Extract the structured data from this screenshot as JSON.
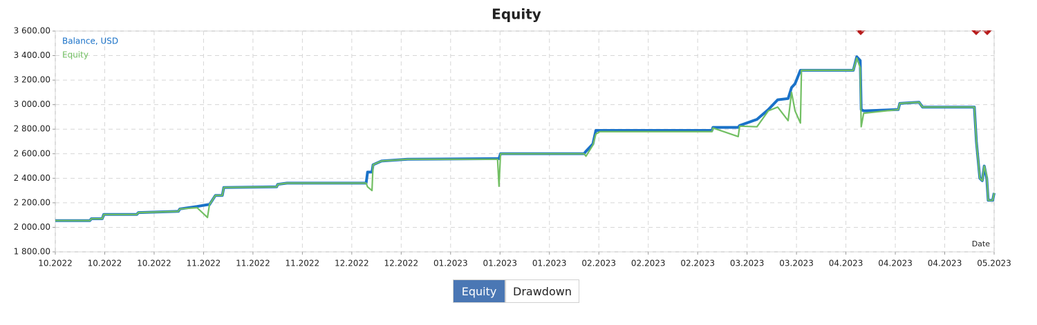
{
  "chart_data": {
    "type": "line",
    "title": "Equity",
    "x_label": "Date",
    "xlim": [
      0,
      19
    ],
    "xticks": [
      {
        "value": 0,
        "label": "10.2022"
      },
      {
        "value": 1,
        "label": "10.2022"
      },
      {
        "value": 2,
        "label": "10.2022"
      },
      {
        "value": 3,
        "label": "11.2022"
      },
      {
        "value": 4,
        "label": "11.2022"
      },
      {
        "value": 5,
        "label": "11.2022"
      },
      {
        "value": 6,
        "label": "12.2022"
      },
      {
        "value": 7,
        "label": "12.2022"
      },
      {
        "value": 8,
        "label": "01.2023"
      },
      {
        "value": 9,
        "label": "01.2023"
      },
      {
        "value": 10,
        "label": "01.2023"
      },
      {
        "value": 11,
        "label": "02.2023"
      },
      {
        "value": 12,
        "label": "02.2023"
      },
      {
        "value": 13,
        "label": "02.2023"
      },
      {
        "value": 14,
        "label": "03.2023"
      },
      {
        "value": 15,
        "label": "03.2023"
      },
      {
        "value": 16,
        "label": "04.2023"
      },
      {
        "value": 17,
        "label": "04.2023"
      },
      {
        "value": 18,
        "label": "04.2023"
      },
      {
        "value": 19,
        "label": "05.2023"
      }
    ],
    "ylim": [
      1800,
      3600
    ],
    "yticks": [
      {
        "value": 1800,
        "label": "1 800.00"
      },
      {
        "value": 2000,
        "label": "2 000.00"
      },
      {
        "value": 2200,
        "label": "2 200.00"
      },
      {
        "value": 2400,
        "label": "2 400.00"
      },
      {
        "value": 2600,
        "label": "2 600.00"
      },
      {
        "value": 2800,
        "label": "2 800.00"
      },
      {
        "value": 3000,
        "label": "3 000.00"
      },
      {
        "value": 3200,
        "label": "3 200.00"
      },
      {
        "value": 3400,
        "label": "3 400.00"
      },
      {
        "value": 3600,
        "label": "3 600.00"
      }
    ],
    "grid": true,
    "legend": "top-left",
    "x": [
      0,
      0.7,
      0.73,
      0.95,
      0.98,
      1.65,
      1.68,
      2.49,
      2.52,
      2.87,
      3.08,
      3.12,
      3.24,
      3.38,
      3.41,
      4.48,
      4.5,
      4.69,
      6.29,
      6.32,
      6.41,
      6.43,
      6.6,
      7.13,
      8.95,
      8.98,
      9.01,
      10.7,
      10.74,
      10.88,
      10.94,
      11.02,
      13.29,
      13.31,
      13.82,
      13.85,
      14.2,
      14.43,
      14.62,
      14.83,
      14.9,
      14.97,
      15.08,
      15.1,
      16.15,
      16.22,
      16.29,
      16.31,
      16.36,
      17.06,
      17.09,
      17.48,
      17.55,
      18.6,
      18.64,
      18.71,
      18.76,
      18.8,
      18.85,
      18.88,
      18.97,
      19
    ],
    "series": [
      {
        "name": "Balance, USD",
        "color": "#1a72c8",
        "values": [
          2055,
          2055,
          2070,
          2070,
          2105,
          2105,
          2120,
          2130,
          2150,
          2170,
          2185,
          2185,
          2260,
          2260,
          2325,
          2330,
          2350,
          2360,
          2360,
          2450,
          2450,
          2510,
          2540,
          2555,
          2560,
          2560,
          2600,
          2600,
          2620,
          2680,
          2790,
          2790,
          2790,
          2815,
          2815,
          2830,
          2880,
          2960,
          3040,
          3050,
          3140,
          3170,
          3280,
          3280,
          3280,
          3390,
          3360,
          2960,
          2950,
          2960,
          3010,
          3020,
          2980,
          2980,
          2700,
          2400,
          2380,
          2500,
          2400,
          2220,
          2220,
          2280
        ]
      },
      {
        "name": "Equity",
        "color": "#72bf63",
        "values": [
          2055,
          2055,
          2070,
          2070,
          2105,
          2105,
          2120,
          2130,
          2150,
          2160,
          2080,
          2185,
          2260,
          2260,
          2325,
          2330,
          2350,
          2360,
          2360,
          2330,
          2300,
          2510,
          2540,
          2555,
          2555,
          2335,
          2600,
          2600,
          2580,
          2670,
          2760,
          2780,
          2780,
          2810,
          2740,
          2825,
          2820,
          2950,
          2980,
          2870,
          3100,
          2950,
          2850,
          3280,
          3280,
          3380,
          3300,
          2820,
          2930,
          2960,
          3010,
          3020,
          2980,
          2980,
          2700,
          2400,
          2380,
          2500,
          2420,
          2220,
          2220,
          2280
        ]
      }
    ]
  },
  "tabs": [
    {
      "label": "Equity",
      "active": true
    },
    {
      "label": "Drawdown",
      "active": false
    }
  ]
}
